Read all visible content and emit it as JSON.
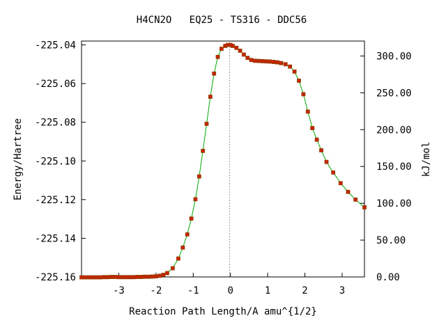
{
  "chart_data": {
    "type": "line",
    "title": "H4CN2O   EQ25 - TS316 - DDC56",
    "xlabel": "Reaction Path Length/A amu^{1/2}",
    "ylabel_left": "Energy/Hartree",
    "ylabel_right": "kJ/mol",
    "xlim": [
      -4.0,
      3.6
    ],
    "ylim": [
      -225.16,
      -225.038
    ],
    "ylim_right": [
      0.0,
      320.3
    ],
    "x_ticks": [
      -3,
      -2,
      -1,
      0,
      1,
      2,
      3
    ],
    "x_tick_labels": [
      "-3",
      "-2",
      "-1",
      "0",
      "1",
      "2",
      "3"
    ],
    "y_ticks": [
      -225.04,
      -225.06,
      -225.08,
      -225.1,
      -225.12,
      -225.14,
      -225.16
    ],
    "y_tick_labels": [
      "-225.04",
      "-225.06",
      "-225.08",
      "-225.10",
      "-225.12",
      "-225.14",
      "-225.16"
    ],
    "y2_ticks": [
      300,
      250,
      200,
      150,
      100,
      50,
      0
    ],
    "y2_tick_labels": [
      "300.00",
      "250.00",
      "200.00",
      "150.00",
      "100.00",
      "50.00",
      "0.00"
    ],
    "ts_marker_x": -0.02,
    "colors": {
      "line": "#00aa00",
      "marker": "#cc2200",
      "marker_edge": "#8b4000"
    },
    "series": [
      {
        "x": [
          -4.0,
          -3.9,
          -3.8,
          -3.7,
          -3.6,
          -3.5,
          -3.4,
          -3.3,
          -3.2,
          -3.1,
          -3.0,
          -2.9,
          -2.8,
          -2.7,
          -2.6,
          -2.5,
          -2.4,
          -2.3,
          -2.2,
          -2.1,
          -2.0,
          -1.9,
          -1.8,
          -1.7,
          -1.55,
          -1.4,
          -1.28,
          -1.16,
          -1.05,
          -0.94,
          -0.84,
          -0.74,
          -0.64,
          -0.54,
          -0.44,
          -0.34,
          -0.24,
          -0.14,
          -0.07,
          0.0,
          0.06,
          0.16,
          0.26,
          0.36,
          0.46,
          0.56,
          0.66,
          0.76,
          0.86,
          0.96,
          1.06,
          1.16,
          1.26,
          1.36,
          1.48,
          1.6,
          1.72,
          1.84,
          1.96,
          2.08,
          2.2,
          2.32,
          2.44,
          2.58,
          2.76,
          2.96,
          3.16,
          3.36,
          3.6
        ],
        "values": [
          -225.1602,
          -225.1602,
          -225.1602,
          -225.1602,
          -225.1602,
          -225.1602,
          -225.1601,
          -225.1601,
          -225.16,
          -225.16,
          -225.1601,
          -225.1601,
          -225.1601,
          -225.1601,
          -225.1601,
          -225.16,
          -225.16,
          -225.1599,
          -225.1599,
          -225.1598,
          -225.1597,
          -225.1594,
          -225.1589,
          -225.158,
          -225.1555,
          -225.1505,
          -225.1448,
          -225.138,
          -225.1298,
          -225.1198,
          -225.108,
          -225.0948,
          -225.0808,
          -225.0668,
          -225.0548,
          -225.0462,
          -225.042,
          -225.0405,
          -225.04,
          -225.04,
          -225.0405,
          -225.0415,
          -225.043,
          -225.045,
          -225.0467,
          -225.0478,
          -225.0482,
          -225.0483,
          -225.0484,
          -225.0485,
          -225.0486,
          -225.0488,
          -225.049,
          -225.0494,
          -225.05,
          -225.0512,
          -225.0538,
          -225.0585,
          -225.0655,
          -225.0745,
          -225.083,
          -225.089,
          -225.0945,
          -225.1005,
          -225.106,
          -225.1115,
          -225.116,
          -225.12,
          -225.124
        ]
      }
    ]
  }
}
